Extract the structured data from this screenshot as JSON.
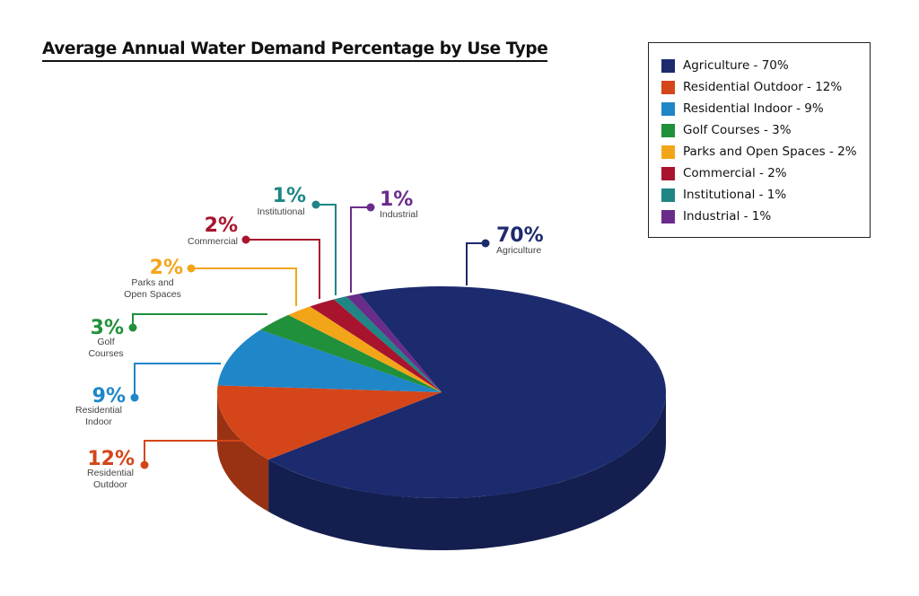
{
  "title": "Average Annual Water Demand Percentage by Use Type",
  "legend": {
    "items": [
      {
        "label": "Agriculture - 70%",
        "color": "#1c2a6e"
      },
      {
        "label": "Residential Outdoor - 12%",
        "color": "#d4461a"
      },
      {
        "label": "Residential Indoor - 9%",
        "color": "#1f86c8"
      },
      {
        "label": "Golf Courses - 3%",
        "color": "#20903a"
      },
      {
        "label": "Parks and Open Spaces - 2%",
        "color": "#f3a519"
      },
      {
        "label": "Commercial - 2%",
        "color": "#a8142e"
      },
      {
        "label": "Institutional - 1%",
        "color": "#1f8585"
      },
      {
        "label": "Industrial - 1%",
        "color": "#6a2c8a"
      }
    ]
  },
  "chart_data": {
    "type": "pie",
    "title": "Average Annual Water Demand Percentage by Use Type",
    "three_d": true,
    "legend_position": "top-right",
    "slices": [
      {
        "name": "Agriculture",
        "value": 70,
        "label_pct": "70%",
        "label_lines": [
          "Agriculture"
        ],
        "color": "#1c2a6e"
      },
      {
        "name": "Residential Outdoor",
        "value": 12,
        "label_pct": "12%",
        "label_lines": [
          "Residential",
          "Outdoor"
        ],
        "color": "#d4461a"
      },
      {
        "name": "Residential Indoor",
        "value": 9,
        "label_pct": "9%",
        "label_lines": [
          "Residential",
          "Indoor"
        ],
        "color": "#1f86c8"
      },
      {
        "name": "Golf Courses",
        "value": 3,
        "label_pct": "3%",
        "label_lines": [
          "Golf",
          "Courses"
        ],
        "color": "#20903a"
      },
      {
        "name": "Parks and Open Spaces",
        "value": 2,
        "label_pct": "2%",
        "label_lines": [
          "Parks and",
          "Open Spaces"
        ],
        "color": "#f3a519"
      },
      {
        "name": "Commercial",
        "value": 2,
        "label_pct": "2%",
        "label_lines": [
          "Commercial"
        ],
        "color": "#a8142e"
      },
      {
        "name": "Institutional",
        "value": 1,
        "label_pct": "1%",
        "label_lines": [
          "Institutional"
        ],
        "color": "#1f8585"
      },
      {
        "name": "Industrial",
        "value": 1,
        "label_pct": "1%",
        "label_lines": [
          "Industrial"
        ],
        "color": "#6a2c8a"
      }
    ]
  }
}
